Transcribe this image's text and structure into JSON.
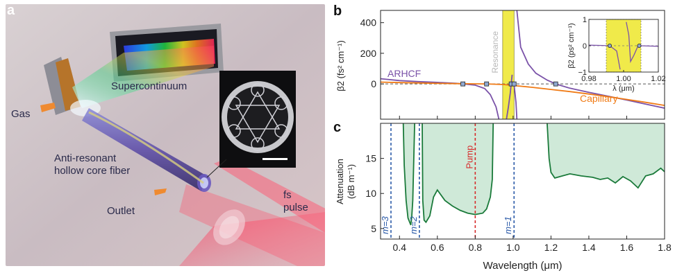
{
  "panel_a": {
    "letter": "a",
    "labels": {
      "supercontinuum": "Supercontinuum",
      "gas": "Gas",
      "fiber_line1": "Anti-resonant",
      "fiber_line2": "hollow core fiber",
      "outlet": "Outlet",
      "pulse_line1": "fs",
      "pulse_line2": "pulse"
    }
  },
  "chart_data": [
    {
      "panel": "b",
      "type": "line",
      "ylabel": "β2 (fs² cm⁻¹)",
      "xlim": [
        0.3,
        1.8
      ],
      "ylim": [
        -230,
        480
      ],
      "yticks": [
        0,
        200,
        400
      ],
      "grid": false,
      "annotations": [
        "Resonance"
      ],
      "resonance_band": [
        0.945,
        1.005
      ],
      "zero_dispersion_markers": [
        0.735,
        0.86,
        0.99,
        1.005,
        1.225
      ],
      "series": [
        {
          "name": "ARHCF",
          "color": "#7a52a8",
          "segments": [
            [
              [
                0.3,
                34
              ],
              [
                0.4,
                22
              ],
              [
                0.5,
                15
              ],
              [
                0.6,
                10
              ],
              [
                0.7,
                4
              ],
              [
                0.735,
                0
              ],
              [
                0.8,
                -8
              ],
              [
                0.85,
                -30
              ],
              [
                0.88,
                -70
              ],
              [
                0.91,
                -150
              ],
              [
                0.925,
                -230
              ]
            ],
            [
              [
                0.965,
                -230
              ],
              [
                0.975,
                -150
              ],
              [
                0.985,
                -60
              ],
              [
                0.99,
                0
              ],
              [
                0.995,
                60
              ]
            ],
            [
              [
                1.005,
                0
              ],
              [
                1.01,
                -60
              ],
              [
                1.015,
                -120
              ],
              [
                1.02,
                -230
              ]
            ],
            [
              [
                1.02,
                480
              ],
              [
                1.04,
                240
              ],
              [
                1.08,
                130
              ],
              [
                1.12,
                70
              ],
              [
                1.18,
                25
              ],
              [
                1.225,
                0
              ],
              [
                1.3,
                -28
              ],
              [
                1.4,
                -55
              ],
              [
                1.5,
                -80
              ],
              [
                1.6,
                -105
              ],
              [
                1.7,
                -132
              ],
              [
                1.8,
                -158
              ]
            ]
          ]
        },
        {
          "name": "Capillary",
          "color": "#f07b16",
          "segments": [
            [
              [
                0.3,
                12
              ],
              [
                0.4,
                9
              ],
              [
                0.5,
                6.5
              ],
              [
                0.6,
                4
              ],
              [
                0.7,
                2
              ],
              [
                0.8,
                0.8
              ],
              [
                0.86,
                0
              ],
              [
                0.95,
                -4
              ],
              [
                1.0,
                -10
              ],
              [
                1.1,
                -22
              ],
              [
                1.2,
                -36
              ],
              [
                1.3,
                -50
              ],
              [
                1.4,
                -66
              ],
              [
                1.5,
                -83
              ],
              [
                1.6,
                -101
              ],
              [
                1.7,
                -120
              ],
              [
                1.8,
                -140
              ]
            ]
          ]
        }
      ],
      "inset": {
        "type": "line",
        "xlabel": "λ (μm)",
        "ylabel": "β2 (ps² cm⁻¹)",
        "xlim": [
          0.98,
          1.02
        ],
        "ylim": [
          -1,
          1
        ],
        "xticks": [
          0.98,
          1.0,
          1.02
        ],
        "yticks": [
          -1,
          0,
          1
        ],
        "highlight": [
          0.99,
          1.01
        ],
        "zero_markers": [
          0.992,
          1.009
        ],
        "series": [
          {
            "name": "ARHCF",
            "color": "#7a52a8",
            "segments": [
              [
                [
                  0.98,
                  0.02
                ],
                [
                  0.988,
                  0.01
                ],
                [
                  0.992,
                  0
                ],
                [
                  0.996,
                  -0.2
                ],
                [
                  0.998,
                  -0.9
                ]
              ],
              [
                [
                  1.0015,
                  0.9
                ],
                [
                  1.003,
                  0.4
                ],
                [
                  1.004,
                  -0.6
                ],
                [
                  1.006,
                  -0.35
                ],
                [
                  1.008,
                  -0.05
                ],
                [
                  1.009,
                  0
                ],
                [
                  1.02,
                  -0.02
                ]
              ]
            ]
          }
        ]
      }
    },
    {
      "panel": "c",
      "type": "area",
      "xlabel": "Wavelength (μm)",
      "ylabel": "Attenuation (dB m⁻¹)",
      "xlim": [
        0.3,
        1.8
      ],
      "ylim": [
        3.5,
        20
      ],
      "xticks": [
        0.4,
        0.6,
        0.8,
        1.0,
        1.2,
        1.4,
        1.6,
        1.8
      ],
      "yticks": [
        5,
        10,
        15
      ],
      "fill_color": "#cfe9d8",
      "line_color": "#1a7a3a",
      "segments": [
        [
          [
            0.42,
            20
          ],
          [
            0.425,
            14
          ],
          [
            0.435,
            9
          ],
          [
            0.445,
            6.5
          ],
          [
            0.455,
            5.8
          ],
          [
            0.46,
            5.5
          ],
          [
            0.465,
            6.8
          ],
          [
            0.47,
            9
          ],
          [
            0.48,
            20
          ]
        ],
        [
          [
            0.52,
            20
          ],
          [
            0.523,
            9
          ],
          [
            0.53,
            6.2
          ],
          [
            0.54,
            5.9
          ],
          [
            0.56,
            6.8
          ],
          [
            0.58,
            9.5
          ],
          [
            0.6,
            10.5
          ],
          [
            0.64,
            9
          ],
          [
            0.68,
            8.2
          ],
          [
            0.72,
            7.6
          ],
          [
            0.76,
            7.2
          ],
          [
            0.8,
            7
          ],
          [
            0.84,
            7.2
          ],
          [
            0.86,
            7.8
          ],
          [
            0.88,
            9.5
          ],
          [
            0.89,
            12
          ],
          [
            0.895,
            20
          ]
        ],
        [
          [
            1.18,
            20
          ],
          [
            1.19,
            15
          ],
          [
            1.2,
            13
          ],
          [
            1.22,
            12.2
          ],
          [
            1.26,
            12.5
          ],
          [
            1.3,
            12.8
          ],
          [
            1.36,
            12.5
          ],
          [
            1.42,
            12.3
          ],
          [
            1.46,
            12.0
          ],
          [
            1.5,
            12.2
          ],
          [
            1.54,
            11.5
          ],
          [
            1.58,
            12.4
          ],
          [
            1.62,
            11.8
          ],
          [
            1.66,
            10.8
          ],
          [
            1.7,
            12.5
          ],
          [
            1.74,
            12.8
          ],
          [
            1.78,
            13.6
          ],
          [
            1.8,
            13.1
          ]
        ]
      ],
      "vertical_lines": [
        {
          "x": 0.355,
          "label": "m=3",
          "color": "#2b5aa8"
        },
        {
          "x": 0.505,
          "label": "m=2",
          "color": "#2b5aa8"
        },
        {
          "x": 0.8,
          "label": "Pump",
          "color": "#d62a2a"
        },
        {
          "x": 1.005,
          "label": "m=1",
          "color": "#2b5aa8"
        }
      ]
    }
  ]
}
